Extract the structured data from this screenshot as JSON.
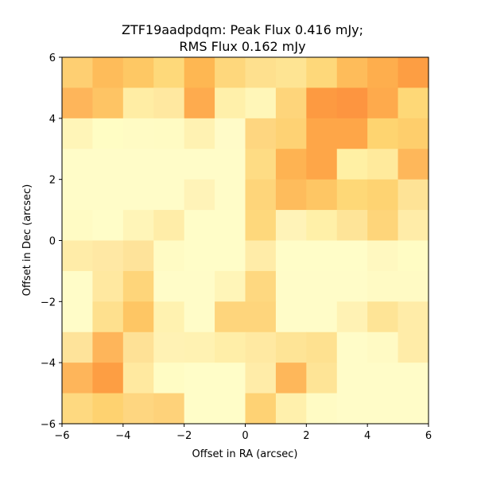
{
  "chart_data": {
    "type": "heatmap",
    "title_lines": [
      "ZTF19aadpdqm: Peak Flux 0.416 mJy;",
      "RMS Flux 0.162 mJy"
    ],
    "xlabel": "Offset in RA (arcsec)",
    "ylabel": "Offset in Dec (arcsec)",
    "xlim": [
      -6,
      6
    ],
    "ylim": [
      -6,
      6
    ],
    "xticks": [
      -6,
      -4,
      -2,
      0,
      2,
      4,
      6
    ],
    "yticks": [
      -6,
      -4,
      -2,
      0,
      2,
      4,
      6
    ],
    "xtick_labels": [
      "−6",
      "−4",
      "−2",
      "0",
      "2",
      "4",
      "6"
    ],
    "ytick_labels": [
      "−6",
      "−4",
      "−2",
      "0",
      "2",
      "4",
      "6"
    ],
    "grid": false,
    "colormap": "YlOrRd",
    "rows_top_to_bottom": [
      [
        "#fecf72",
        "#febc5a",
        "#fec864",
        "#fed97a",
        "#feb752",
        "#fed77c",
        "#fee08e",
        "#fee493",
        "#fed87a",
        "#febc5a",
        "#feae4d",
        "#fd9e43"
      ],
      [
        "#feb55a",
        "#fec464",
        "#ffeda4",
        "#ffe8a0",
        "#feab4e",
        "#fff0aa",
        "#fff6b8",
        "#fed57b",
        "#fd9a41",
        "#fd9540",
        "#feaa4c",
        "#fed877"
      ],
      [
        "#fff5b8",
        "#fffdc4",
        "#fffbc4",
        "#fffbc3",
        "#fff2b2",
        "#fffbc8",
        "#fed680",
        "#fed274",
        "#fea648",
        "#fea648",
        "#fed470",
        "#fece6c"
      ],
      [
        "#fffcc8",
        "#fffcc8",
        "#fffcc8",
        "#fffcc8",
        "#fffcc8",
        "#fffcc8",
        "#fedc84",
        "#feb352",
        "#fea648",
        "#fff0a4",
        "#ffea9c",
        "#feb75a"
      ],
      [
        "#fffcc8",
        "#fffcc8",
        "#fffcc8",
        "#fffcc8",
        "#fff3b8",
        "#fffcc8",
        "#fed57a",
        "#febc5c",
        "#fec664",
        "#fed877",
        "#fed372",
        "#fee396"
      ],
      [
        "#fffbc4",
        "#fffdc8",
        "#fff5b8",
        "#ffeda8",
        "#fffdc8",
        "#fffdc8",
        "#fed87c",
        "#fff3b8",
        "#fff0a8",
        "#fee498",
        "#fed57a",
        "#ffeca8"
      ],
      [
        "#ffeca8",
        "#ffe8a4",
        "#fee39a",
        "#fffbc4",
        "#fffdc8",
        "#fffdc8",
        "#ffeca8",
        "#fffdc8",
        "#fffdc8",
        "#fffdc8",
        "#fff8c0",
        "#fffcc4"
      ],
      [
        "#fffcc8",
        "#ffe8a0",
        "#fed57a",
        "#fffcc8",
        "#fffcc8",
        "#fff5b8",
        "#fed880",
        "#fffcc8",
        "#fffcc8",
        "#fffcc8",
        "#fffac4",
        "#fffac4"
      ],
      [
        "#fffcc8",
        "#fee08e",
        "#fec664",
        "#fff2b0",
        "#fffcc8",
        "#fed57c",
        "#fed57c",
        "#fffcc8",
        "#fffcc8",
        "#fff2b4",
        "#fee496",
        "#ffeca8"
      ],
      [
        "#fee39a",
        "#feb55a",
        "#fee196",
        "#fff2b4",
        "#fff2b2",
        "#ffeea8",
        "#ffe9a2",
        "#fee496",
        "#fee190",
        "#fffcc8",
        "#fffac4",
        "#ffeca8"
      ],
      [
        "#feb55a",
        "#fd9e43",
        "#ffe9a0",
        "#fffcc4",
        "#fffdc8",
        "#fffdc8",
        "#ffeca8",
        "#feb75a",
        "#fee496",
        "#fffcc8",
        "#fffcc8",
        "#fffcc8"
      ],
      [
        "#fed980",
        "#fed270",
        "#fed680",
        "#fed27a",
        "#fffdc8",
        "#fffdc8",
        "#fed274",
        "#fff0ac",
        "#fffbc4",
        "#fffcc8",
        "#fffcc8",
        "#fffcc8"
      ]
    ]
  }
}
